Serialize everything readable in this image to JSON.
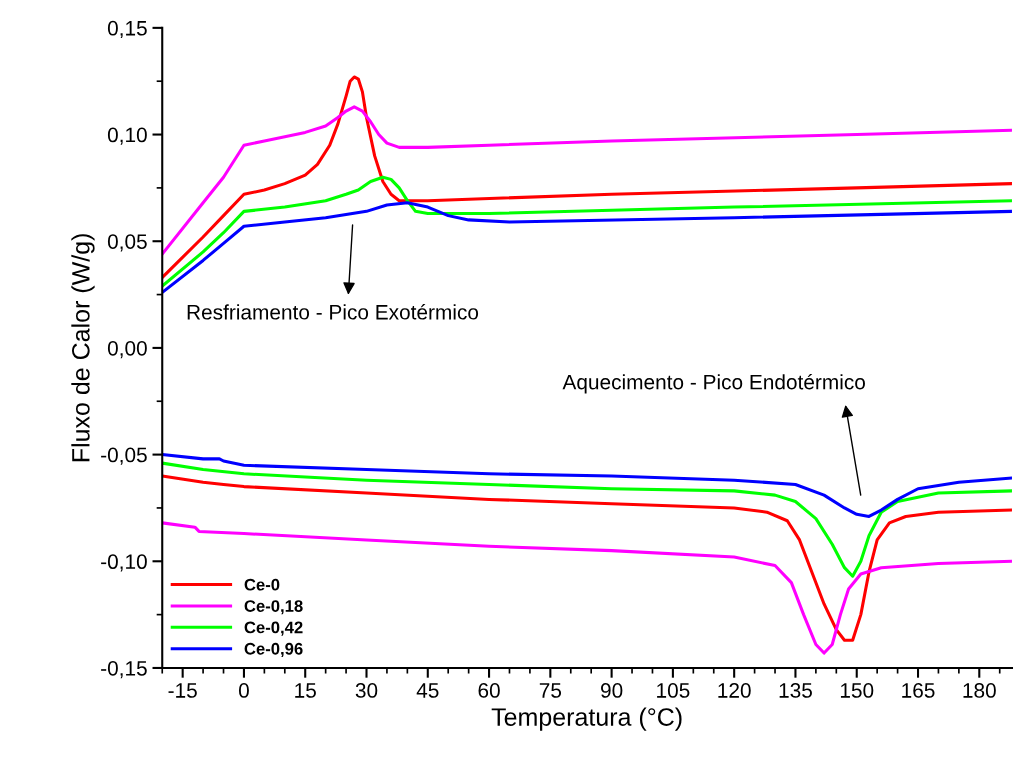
{
  "chart_data": {
    "type": "line",
    "xlabel": "Temperatura (°C)",
    "ylabel": "Fluxo de Calor (W/g)",
    "xlim": [
      -20,
      188
    ],
    "ylim": [
      -0.15,
      0.15
    ],
    "xticks": [
      -15,
      0,
      15,
      30,
      45,
      60,
      75,
      90,
      105,
      120,
      135,
      150,
      165,
      180
    ],
    "yticks": [
      {
        "value": -0.15,
        "label": "-0,15"
      },
      {
        "value": -0.1,
        "label": "-0,10"
      },
      {
        "value": -0.05,
        "label": "-0,05"
      },
      {
        "value": 0,
        "label": "0,00"
      },
      {
        "value": 0.05,
        "label": "0,05"
      },
      {
        "value": 0.1,
        "label": "0,10"
      },
      {
        "value": 0.15,
        "label": "0,15"
      }
    ],
    "legend": "bottom left",
    "grid": false,
    "marker": "none",
    "line_style": "solid",
    "series": [
      {
        "name": "Ce-0",
        "color": "#ff0000",
        "x": [
          -20,
          -10,
          -5,
          0,
          5,
          10,
          15,
          18,
          21,
          23,
          25,
          26,
          27,
          28,
          29,
          30,
          32,
          34,
          36,
          38,
          45,
          90,
          150,
          188
        ],
        "values": [
          0.033,
          0.052,
          0.062,
          0.072,
          0.074,
          0.077,
          0.081,
          0.086,
          0.095,
          0.105,
          0.118,
          0.125,
          0.127,
          0.126,
          0.12,
          0.108,
          0.09,
          0.078,
          0.072,
          0.069,
          0.069,
          0.072,
          0.075,
          0.077
        ]
      },
      {
        "name": "Ce-0,18",
        "color": "#ff00ff",
        "x": [
          -20,
          -10,
          -5,
          0,
          5,
          10,
          15,
          20,
          23,
          25,
          27,
          29,
          31,
          33,
          35,
          38,
          45,
          60,
          90,
          150,
          188
        ],
        "values": [
          0.044,
          0.068,
          0.08,
          0.095,
          0.097,
          0.099,
          0.101,
          0.104,
          0.108,
          0.111,
          0.113,
          0.111,
          0.106,
          0.1,
          0.096,
          0.094,
          0.094,
          0.095,
          0.097,
          0.1,
          0.102
        ]
      },
      {
        "name": "Ce-0,42",
        "color": "#00ff00",
        "x": [
          -20,
          -10,
          -5,
          0,
          10,
          20,
          25,
          28,
          31,
          34,
          36,
          38,
          40,
          42,
          45,
          60,
          120,
          188
        ],
        "values": [
          0.029,
          0.045,
          0.054,
          0.064,
          0.066,
          0.069,
          0.072,
          0.074,
          0.078,
          0.08,
          0.079,
          0.075,
          0.069,
          0.064,
          0.063,
          0.063,
          0.066,
          0.069
        ]
      },
      {
        "name": "Ce-0,96",
        "color": "#0000ff",
        "x": [
          -20,
          -10,
          -5,
          0,
          10,
          20,
          30,
          35,
          40,
          45,
          50,
          55,
          65,
          120,
          188
        ],
        "values": [
          0.026,
          0.041,
          0.049,
          0.057,
          0.059,
          0.061,
          0.064,
          0.067,
          0.068,
          0.066,
          0.062,
          0.06,
          0.059,
          0.061,
          0.064
        ]
      },
      {
        "color": "#ff0000",
        "x": [
          -20,
          -10,
          -5,
          0,
          30,
          60,
          90,
          120,
          128,
          133,
          136,
          139,
          142,
          145,
          147,
          149,
          151,
          153,
          155,
          158,
          162,
          170,
          188
        ],
        "values": [
          -0.06,
          -0.063,
          -0.064,
          -0.065,
          -0.068,
          -0.071,
          -0.073,
          -0.075,
          -0.077,
          -0.081,
          -0.09,
          -0.105,
          -0.12,
          -0.132,
          -0.137,
          -0.137,
          -0.125,
          -0.105,
          -0.09,
          -0.082,
          -0.079,
          -0.077,
          -0.076
        ]
      },
      {
        "color": "#ff00ff",
        "x": [
          -20,
          -12,
          -11,
          0,
          30,
          60,
          90,
          120,
          130,
          134,
          137,
          140,
          142,
          144,
          146,
          148,
          151,
          156,
          170,
          188
        ],
        "values": [
          -0.082,
          -0.084,
          -0.086,
          -0.087,
          -0.09,
          -0.093,
          -0.095,
          -0.098,
          -0.102,
          -0.11,
          -0.125,
          -0.139,
          -0.143,
          -0.139,
          -0.125,
          -0.113,
          -0.106,
          -0.103,
          -0.101,
          -0.1
        ]
      },
      {
        "color": "#00ff00",
        "x": [
          -20,
          -10,
          0,
          30,
          60,
          90,
          120,
          130,
          135,
          140,
          144,
          147,
          149,
          151,
          153,
          156,
          160,
          170,
          188
        ],
        "values": [
          -0.054,
          -0.057,
          -0.059,
          -0.062,
          -0.064,
          -0.066,
          -0.067,
          -0.069,
          -0.072,
          -0.08,
          -0.092,
          -0.103,
          -0.107,
          -0.1,
          -0.088,
          -0.077,
          -0.072,
          -0.068,
          -0.067
        ]
      },
      {
        "color": "#0000ff",
        "x": [
          -20,
          -10,
          -6,
          -5,
          0,
          30,
          60,
          90,
          120,
          135,
          142,
          147,
          150,
          153,
          156,
          160,
          165,
          175,
          188
        ],
        "values": [
          -0.05,
          -0.052,
          -0.052,
          -0.053,
          -0.055,
          -0.057,
          -0.059,
          -0.06,
          -0.062,
          -0.064,
          -0.069,
          -0.075,
          -0.078,
          -0.079,
          -0.076,
          -0.071,
          -0.066,
          -0.063,
          -0.061
        ]
      }
    ],
    "annotations": [
      "Resfriamento - Pico Exotérmico",
      "Aquecimento - Pico Endotérmico"
    ]
  }
}
